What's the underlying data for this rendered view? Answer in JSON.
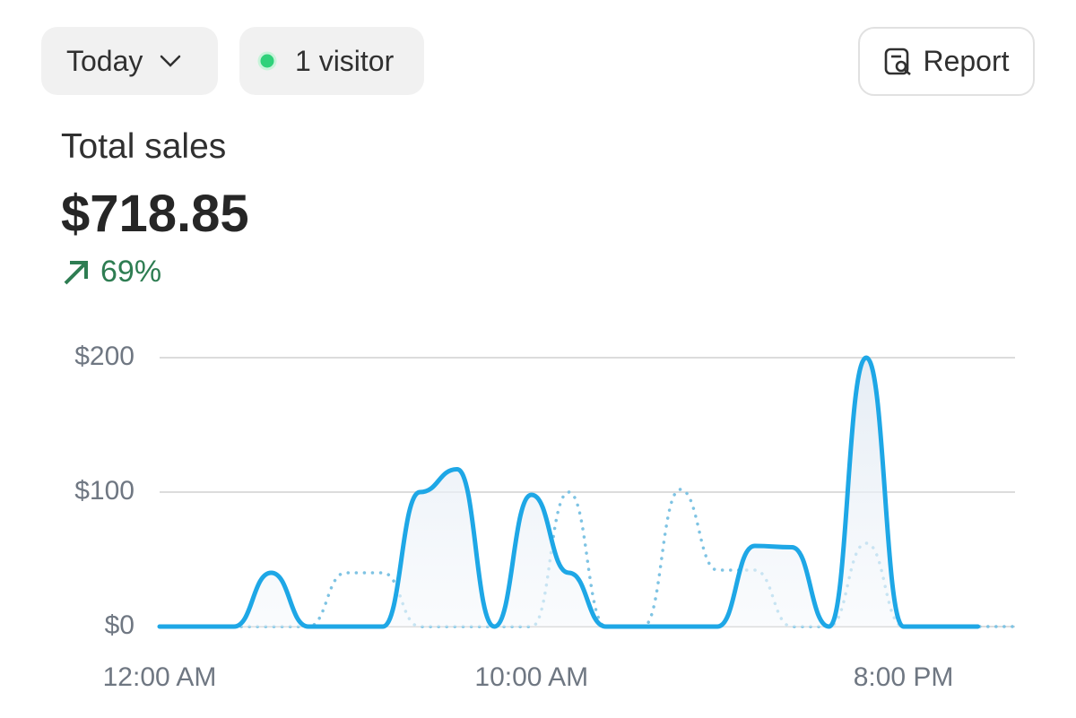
{
  "header": {
    "filter": "Today",
    "visitors": "1 visitor",
    "report": "Report"
  },
  "metric": {
    "label": "Total sales",
    "value": "$718.85",
    "change": "69%"
  },
  "chart_data": {
    "type": "line",
    "categories": [
      "12:00 AM",
      null,
      null,
      null,
      null,
      null,
      null,
      null,
      null,
      null,
      "10:00 AM",
      null,
      null,
      null,
      null,
      null,
      null,
      null,
      null,
      null,
      "8:00 PM",
      null,
      null,
      null
    ],
    "series": [
      {
        "color": "#7ec3e3",
        "line_style": "dotted",
        "values": [
          0,
          0,
          0,
          0,
          0,
          40,
          40,
          0,
          0,
          0,
          0,
          100,
          0,
          0,
          102,
          42,
          42,
          0,
          0,
          62,
          0,
          0,
          0,
          0
        ]
      },
      {
        "color": "#1ea7e6",
        "line_style": "solid",
        "values": [
          0,
          0,
          0,
          40,
          0,
          0,
          0,
          100,
          117,
          0,
          98,
          40,
          0,
          0,
          0,
          0,
          60,
          59,
          0,
          200,
          0,
          0,
          0,
          null
        ]
      }
    ],
    "ylim": [
      0,
      200
    ],
    "yticks": [
      {
        "value": 0,
        "label": "$0"
      },
      {
        "value": 100,
        "label": "$100"
      },
      {
        "value": 200,
        "label": "$200"
      }
    ],
    "grid": true
  }
}
